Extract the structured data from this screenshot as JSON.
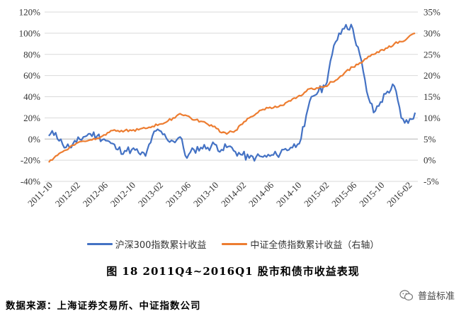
{
  "chart_data": {
    "type": "line",
    "left_axis": {
      "ticks": [
        "120%",
        "100%",
        "80%",
        "60%",
        "40%",
        "20%",
        "0%",
        "-20%",
        "-40%"
      ],
      "ylim": [
        -40,
        120
      ],
      "unit": "%"
    },
    "right_axis": {
      "ticks": [
        "35%",
        "30%",
        "25%",
        "20%",
        "15%",
        "10%",
        "5%",
        "0%",
        "-5%"
      ],
      "ylim": [
        -5,
        35
      ],
      "unit": "%"
    },
    "x_tick_labels": [
      "2011-10",
      "2012-02",
      "2012-06",
      "2012-10",
      "2013-02",
      "2013-06",
      "2013-10",
      "2014-02",
      "2014-06",
      "2014-10",
      "2015-02",
      "2015-06",
      "2015-10",
      "2016-02"
    ],
    "x_range_months": [
      "2011-10",
      "2016-03"
    ],
    "grid": "horizontal",
    "legend_position": "bottom",
    "series": [
      {
        "name": "沪深300指数累计收益",
        "axis": "left",
        "color": "#4472C4",
        "points": [
          [
            "2011-10",
            3
          ],
          [
            "2011-11",
            6
          ],
          [
            "2011-12",
            -5
          ],
          [
            "2012-01",
            -8
          ],
          [
            "2012-02",
            -3
          ],
          [
            "2012-03",
            2
          ],
          [
            "2012-04",
            5
          ],
          [
            "2012-05",
            3
          ],
          [
            "2012-06",
            0
          ],
          [
            "2012-07",
            -4
          ],
          [
            "2012-08",
            -10
          ],
          [
            "2012-09",
            -11
          ],
          [
            "2012-10",
            -10
          ],
          [
            "2012-11",
            -13
          ],
          [
            "2012-12",
            -16
          ],
          [
            "2013-01",
            3
          ],
          [
            "2013-02",
            8
          ],
          [
            "2013-03",
            1
          ],
          [
            "2013-04",
            -2
          ],
          [
            "2013-05",
            2
          ],
          [
            "2013-06",
            -18
          ],
          [
            "2013-07",
            -10
          ],
          [
            "2013-08",
            -8
          ],
          [
            "2013-09",
            -8
          ],
          [
            "2013-10",
            -5
          ],
          [
            "2013-11",
            -10
          ],
          [
            "2013-12",
            -7
          ],
          [
            "2014-01",
            -12
          ],
          [
            "2014-02",
            -15
          ],
          [
            "2014-03",
            -18
          ],
          [
            "2014-04",
            -17
          ],
          [
            "2014-05",
            -17
          ],
          [
            "2014-06",
            -16
          ],
          [
            "2014-07",
            -15
          ],
          [
            "2014-08",
            -10
          ],
          [
            "2014-09",
            -8
          ],
          [
            "2014-10",
            -5
          ],
          [
            "2014-11",
            12
          ],
          [
            "2014-12",
            40
          ],
          [
            "2015-01",
            45
          ],
          [
            "2015-02",
            50
          ],
          [
            "2015-03",
            80
          ],
          [
            "2015-04",
            100
          ],
          [
            "2015-05",
            108
          ],
          [
            "2015-06",
            104
          ],
          [
            "2015-07",
            80
          ],
          [
            "2015-08",
            45
          ],
          [
            "2015-09",
            25
          ],
          [
            "2015-10",
            35
          ],
          [
            "2015-11",
            45
          ],
          [
            "2015-12",
            50
          ],
          [
            "2016-01",
            20
          ],
          [
            "2016-02",
            15
          ],
          [
            "2016-03",
            25
          ]
        ]
      },
      {
        "name": "中证全债指数累计收益（右轴）",
        "axis": "right",
        "color": "#ED7D31",
        "points": [
          [
            "2011-10",
            -0.5
          ],
          [
            "2011-11",
            1
          ],
          [
            "2011-12",
            2
          ],
          [
            "2012-01",
            3
          ],
          [
            "2012-02",
            4
          ],
          [
            "2012-03",
            4.5
          ],
          [
            "2012-04",
            4.8
          ],
          [
            "2012-05",
            5.2
          ],
          [
            "2012-06",
            6
          ],
          [
            "2012-07",
            7
          ],
          [
            "2012-08",
            7
          ],
          [
            "2012-09",
            7
          ],
          [
            "2012-10",
            7
          ],
          [
            "2012-11",
            7.2
          ],
          [
            "2012-12",
            7.5
          ],
          [
            "2013-01",
            8
          ],
          [
            "2013-02",
            8.5
          ],
          [
            "2013-03",
            9
          ],
          [
            "2013-04",
            10
          ],
          [
            "2013-05",
            11
          ],
          [
            "2013-06",
            10.5
          ],
          [
            "2013-07",
            9.5
          ],
          [
            "2013-08",
            9.2
          ],
          [
            "2013-09",
            8.5
          ],
          [
            "2013-10",
            8
          ],
          [
            "2013-11",
            6.5
          ],
          [
            "2013-12",
            6.5
          ],
          [
            "2014-01",
            7
          ],
          [
            "2014-02",
            8.5
          ],
          [
            "2014-03",
            10
          ],
          [
            "2014-04",
            11
          ],
          [
            "2014-05",
            12
          ],
          [
            "2014-06",
            12.5
          ],
          [
            "2014-07",
            12.5
          ],
          [
            "2014-08",
            13
          ],
          [
            "2014-09",
            14
          ],
          [
            "2014-10",
            15
          ],
          [
            "2014-11",
            16
          ],
          [
            "2014-12",
            17
          ],
          [
            "2015-01",
            17
          ],
          [
            "2015-02",
            17.5
          ],
          [
            "2015-03",
            18.5
          ],
          [
            "2015-04",
            19.5
          ],
          [
            "2015-05",
            21
          ],
          [
            "2015-06",
            22
          ],
          [
            "2015-07",
            23
          ],
          [
            "2015-08",
            24
          ],
          [
            "2015-09",
            25
          ],
          [
            "2015-10",
            26
          ],
          [
            "2015-11",
            26.5
          ],
          [
            "2015-12",
            27.5
          ],
          [
            "2016-01",
            28
          ],
          [
            "2016-02",
            29
          ],
          [
            "2016-03",
            30
          ]
        ]
      }
    ]
  },
  "caption": "图  18    2011Q4~2016Q1 股市和债市收益表现",
  "source": "数据来源：上海证券交易所、中证指数公司",
  "watermark": {
    "text": "普益标准",
    "icon": "wechat-icon"
  }
}
